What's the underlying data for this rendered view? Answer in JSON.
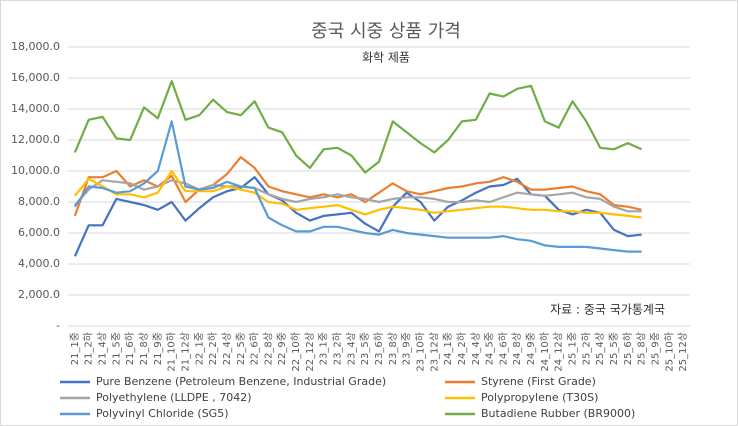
{
  "chart_data": {
    "type": "line",
    "title": "중국 시중 상품 가격",
    "subtitle": "화학 제품",
    "annotation": "자료 : 중국 국가통계국",
    "categories": [
      "21_1중",
      "21_2하",
      "21_4상",
      "21_5중",
      "21_6하",
      "21_8상",
      "21_9중",
      "21_10하",
      "21_12상",
      "22_1중",
      "22_2하",
      "22_4상",
      "22_5중",
      "22_6하",
      "22_8상",
      "22_9중",
      "22_10하",
      "22_12상",
      "23_1중",
      "23_2하",
      "23_4상",
      "23_5중",
      "23_6하",
      "23_8상",
      "23_9중",
      "23_10하",
      "23_12상",
      "24_1중",
      "24_2하",
      "24_4상",
      "24_5중",
      "24_6하",
      "24_8상",
      "24_9중",
      "24_10하",
      "24_12상",
      "25_1중",
      "25_2하",
      "25_4상",
      "25_5중",
      "25_6하",
      "25_8상",
      "25_9중",
      "25_10하",
      "25_12상"
    ],
    "series": [
      {
        "name": "Pure Benzene (Petroleum Benzene, Industrial Grade)",
        "color": "#4472c4",
        "values": [
          4500,
          6500,
          6500,
          8200,
          8000,
          7800,
          7500,
          8000,
          6800,
          7600,
          8300,
          8700,
          8900,
          9600,
          8500,
          8100,
          7300,
          6800,
          7100,
          7200,
          7300,
          6600,
          6100,
          7700,
          8600,
          8000,
          6800,
          7700,
          8100,
          8600,
          9000,
          9100,
          9500,
          8500,
          8400,
          7500,
          7200,
          7500,
          7300,
          6200,
          5800,
          5900,
          null,
          null,
          null
        ]
      },
      {
        "name": "Styrene (First Grade)",
        "color": "#ed7d31",
        "values": [
          7100,
          9600,
          9600,
          10000,
          9000,
          9400,
          9000,
          9700,
          8000,
          8800,
          9100,
          9800,
          10900,
          10200,
          9000,
          8700,
          8500,
          8300,
          8500,
          8300,
          8500,
          8000,
          8600,
          9200,
          8700,
          8500,
          8700,
          8900,
          9000,
          9200,
          9300,
          9600,
          9300,
          8800,
          8800,
          8900,
          9000,
          8700,
          8500,
          7800,
          7700,
          7500,
          null,
          null,
          null
        ]
      },
      {
        "name": "Polyethylene (LLDPE , 7042)",
        "color": "#a5a5a5",
        "values": [
          7800,
          8800,
          9400,
          9300,
          9200,
          8800,
          9000,
          9400,
          9200,
          8800,
          9100,
          9000,
          9000,
          8900,
          8500,
          8200,
          8000,
          8200,
          8300,
          8500,
          8300,
          8200,
          8000,
          8200,
          8300,
          8300,
          8200,
          8000,
          8000,
          8100,
          8000,
          8300,
          8600,
          8500,
          8400,
          8500,
          8600,
          8300,
          8200,
          7700,
          7400,
          7400,
          null,
          null,
          null
        ]
      },
      {
        "name": "Polypropylene (T30S)",
        "color": "#ffc000",
        "values": [
          8400,
          9500,
          9000,
          8500,
          8500,
          8300,
          8600,
          10000,
          8700,
          8700,
          8700,
          9000,
          8800,
          8600,
          8000,
          7900,
          7500,
          7600,
          7700,
          7800,
          7500,
          7200,
          7500,
          7700,
          7600,
          7500,
          7300,
          7400,
          7500,
          7600,
          7700,
          7700,
          7600,
          7500,
          7500,
          7400,
          7400,
          7300,
          7300,
          7200,
          7100,
          7000,
          null,
          null,
          null
        ]
      },
      {
        "name": "Polyvinyl Chloride (SG5)",
        "color": "#5b9bd5",
        "values": [
          7700,
          9000,
          8900,
          8600,
          8700,
          9200,
          10000,
          13200,
          9000,
          8800,
          8900,
          9300,
          9000,
          8900,
          7000,
          6500,
          6100,
          6100,
          6400,
          6400,
          6200,
          6000,
          5900,
          6200,
          6000,
          5900,
          5800,
          5700,
          5700,
          5700,
          5700,
          5800,
          5600,
          5500,
          5200,
          5100,
          5100,
          5100,
          5000,
          4900,
          4800,
          4800,
          null,
          null,
          null
        ]
      },
      {
        "name": "Butadiene Rubber (BR9000)",
        "color": "#70ad47",
        "values": [
          11200,
          13300,
          13500,
          12100,
          12000,
          14100,
          13400,
          15800,
          13300,
          13600,
          14600,
          13800,
          13600,
          14500,
          12800,
          12500,
          11000,
          10200,
          11400,
          11500,
          11000,
          9900,
          10600,
          13200,
          12500,
          11800,
          11200,
          12000,
          13200,
          13300,
          15000,
          14800,
          15300,
          15500,
          13200,
          12800,
          14500,
          13200,
          11500,
          11400,
          11800,
          11400,
          null,
          null,
          null
        ]
      }
    ],
    "ylim": [
      0,
      18000
    ],
    "yticks": [
      {
        "value": 0,
        "label": "-"
      },
      {
        "value": 2000,
        "label": "2,000.0"
      },
      {
        "value": 4000,
        "label": "4,000.0"
      },
      {
        "value": 6000,
        "label": "6,000.0"
      },
      {
        "value": 8000,
        "label": "8,000.0"
      },
      {
        "value": 10000,
        "label": "10,000.0"
      },
      {
        "value": 12000,
        "label": "12,000.0"
      },
      {
        "value": 14000,
        "label": "14,000.0"
      },
      {
        "value": 16000,
        "label": "16,000.0"
      },
      {
        "value": 18000,
        "label": "18,000.0"
      }
    ],
    "grid": true,
    "legend": "bottom"
  }
}
